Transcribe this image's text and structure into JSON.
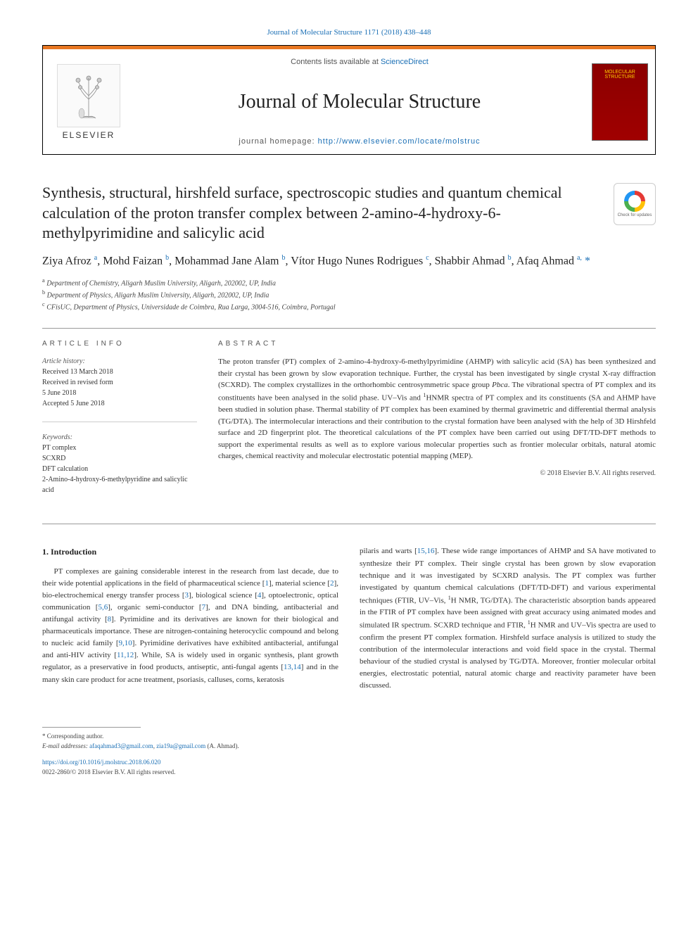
{
  "top_link": "Journal of Molecular Structure 1171 (2018) 438–448",
  "header": {
    "contents_prefix": "Contents lists available at ",
    "contents_link": "ScienceDirect",
    "journal_name": "Journal of Molecular Structure",
    "homepage_prefix": "journal homepage: ",
    "homepage_url": "http://www.elsevier.com/locate/molstruc",
    "publisher": "ELSEVIER",
    "cover_label": "MOLECULAR STRUCTURE"
  },
  "check_updates": "Check for updates",
  "title": "Synthesis, structural, hirshfeld surface, spectroscopic studies and quantum chemical calculation of the proton transfer complex between 2-amino-4-hydroxy-6-methylpyrimidine and salicylic acid",
  "authors_html": "Ziya Afroz <sup>a</sup>, Mohd Faizan <sup>b</sup>, Mohammad Jane Alam <sup>b</sup>, Vítor Hugo Nunes Rodrigues <sup>c</sup>, Shabbir Ahmad <sup>b</sup>, Afaq Ahmad <sup>a,</sup> <span class='corr'>*</span>",
  "affiliations": [
    {
      "sup": "a",
      "text": "Department of Chemistry, Aligarh Muslim University, Aligarh, 202002, UP, India"
    },
    {
      "sup": "b",
      "text": "Department of Physics, Aligarh Muslim University, Aligarh, 202002, UP, India"
    },
    {
      "sup": "c",
      "text": "CFisUC, Department of Physics, Universidade de Coimbra, Rua Larga, 3004-516, Coimbra, Portugal"
    }
  ],
  "article_info": {
    "heading": "ARTICLE INFO",
    "history_label": "Article history:",
    "history": [
      "Received 13 March 2018",
      "Received in revised form",
      "5 June 2018",
      "Accepted 5 June 2018"
    ],
    "keywords_label": "Keywords:",
    "keywords": [
      "PT complex",
      "SCXRD",
      "DFT calculation",
      "2-Amino-4-hydroxy-6-methylpyridine and salicylic acid"
    ]
  },
  "abstract": {
    "heading": "ABSTRACT",
    "text_html": "The proton transfer (PT) complex of 2-amino-4-hydroxy-6-methylpyrimidine (AHMP) with salicylic acid (SA) has been synthesized and their crystal has been grown by slow evaporation technique. Further, the crystal has been investigated by single crystal X-ray diffraction (SCXRD). The complex crystallizes in the orthorhombic centrosymmetric space group <i>Pbca</i>. The vibrational spectra of PT complex and its constituents have been analysed in the solid phase. UV–Vis and <sup>1</sup>HNMR spectra of PT complex and its constituents (SA and AHMP have been studied in solution phase. Thermal stability of PT complex has been examined by thermal gravimetric and differential thermal analysis (TG/DTA). The intermolecular interactions and their contribution to the crystal formation have been analysed with the help of 3D Hirshfeld surface and 2D fingerprint plot. The theoretical calculations of the PT complex have been carried out using DFT/TD-DFT methods to support the experimental results as well as to explore various molecular properties such as frontier molecular orbitals, natural atomic charges, chemical reactivity and molecular electrostatic potential mapping (MEP).",
    "copyright": "© 2018 Elsevier B.V. All rights reserved."
  },
  "intro": {
    "heading": "1. Introduction",
    "col1_html": "PT complexes are gaining considerable interest in the research from last decade, due to their wide potential applications in the field of pharmaceutical science [<a>1</a>], material science [<a>2</a>], bio-electrochemical energy transfer process [<a>3</a>], biological science [<a>4</a>], optoelectronic, optical communication [<a>5,6</a>], organic semi-conductor [<a>7</a>], and DNA binding, antibacterial and antifungal activity [<a>8</a>]. Pyrimidine and its derivatives are known for their biological and pharmaceuticals importance. These are nitrogen-containing heterocyclic compound and belong to nucleic acid family [<a>9,10</a>]. Pyrimidine derivatives have exhibited antibacterial, antifungal and anti-HIV activity [<a>11,12</a>]. While, SA is widely used in organic synthesis, plant growth regulator, as a preservative in food products, antiseptic, anti-fungal agents [<a>13,14</a>] and in the many skin care product for acne treatment, psoriasis, calluses, corns, keratosis",
    "col2_html": "pilaris and warts [<a>15,16</a>]. These wide range importances of AHMP and SA have motivated to synthesize their PT complex. Their single crystal has been grown by slow evaporation technique and it was investigated by SCXRD analysis. The PT complex was further investigated by quantum chemical calculations (DFT/TD-DFT) and various experimental techniques (FTIR, UV–Vis, <sup>1</sup>H NMR, TG/DTA). The characteristic absorption bands appeared in the FTIR of PT complex have been assigned with great accuracy using animated modes and simulated IR spectrum. SCXRD technique and FTIR, <sup>1</sup>H NMR and UV–Vis spectra are used to confirm the present PT complex formation. Hirshfeld surface analysis is utilized to study the contribution of the intermolecular interactions and void field space in the crystal. Thermal behaviour of the studied crystal is analysed by TG/DTA. Moreover, frontier molecular orbital energies, electrostatic potential, natural atomic charge and reactivity parameter have been discussed."
  },
  "footer": {
    "corr_label": "* Corresponding author.",
    "email_label": "E-mail addresses: ",
    "emails": [
      "afaqahmad3@gmail.com",
      "zia19a@gmail.com"
    ],
    "email_suffix": " (A. Ahmad).",
    "doi": "https://doi.org/10.1016/j.molstruc.2018.06.020",
    "issn_line": "0022-2860/© 2018 Elsevier B.V. All rights reserved."
  },
  "colors": {
    "link": "#1a6fb5",
    "orange": "#e87722",
    "cover_bg": "#8b0000",
    "cover_text": "#ffcc00"
  }
}
